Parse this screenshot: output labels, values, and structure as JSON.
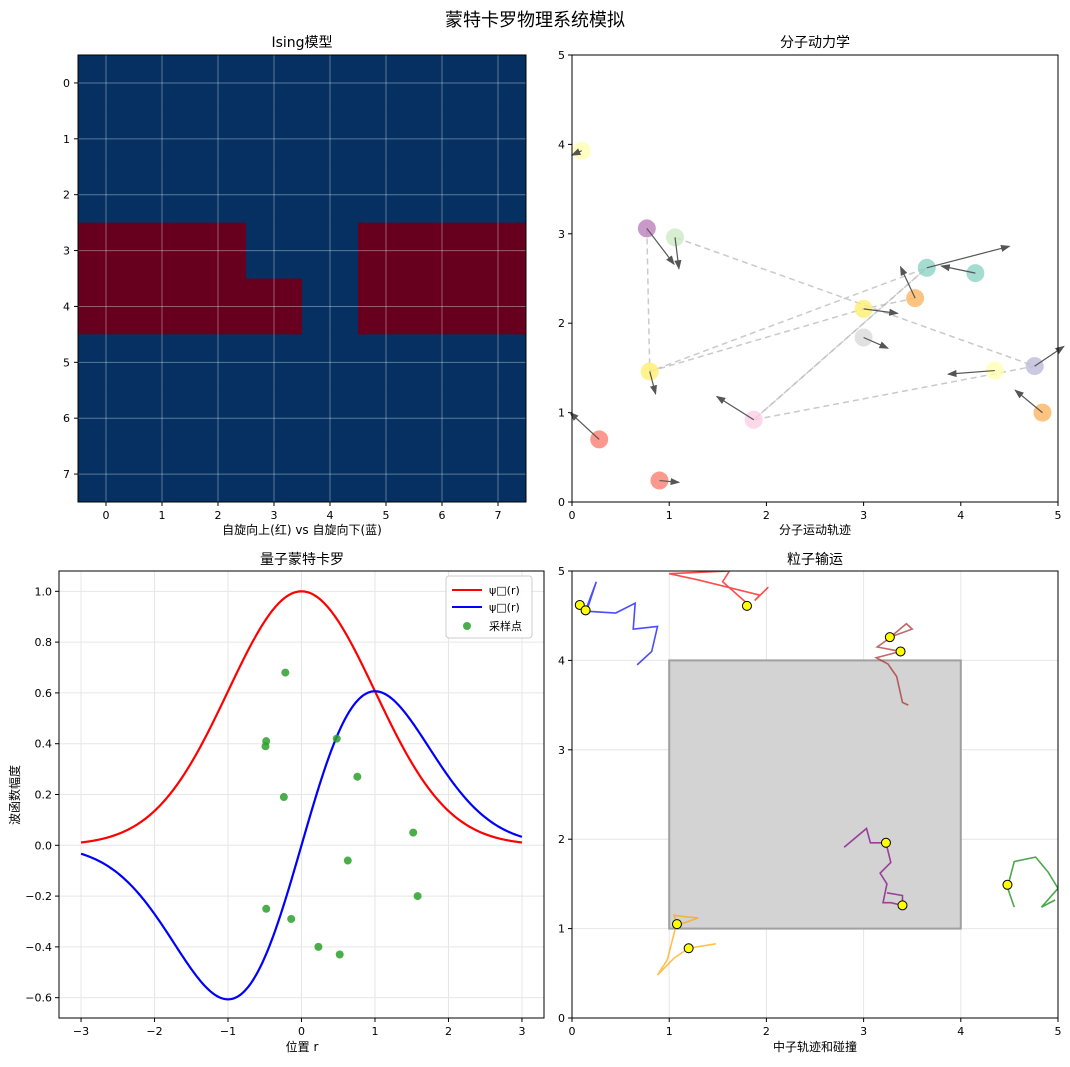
{
  "figure": {
    "suptitle": "蒙特卡罗物理系统模拟"
  },
  "chart_data": [
    {
      "id": "ising",
      "type": "heatmap",
      "title": "Ising模型",
      "xlabel": "自旋向上(红) vs 自旋向下(蓝)",
      "ylabel": "",
      "x_ticks": [
        "0",
        "1",
        "2",
        "3",
        "4",
        "5",
        "6",
        "7"
      ],
      "y_ticks": [
        "0",
        "1",
        "2",
        "3",
        "4",
        "5",
        "6",
        "7"
      ],
      "colors": {
        "up": "#67001f",
        "down": "#053061"
      },
      "grid": true,
      "values": [
        [
          -1,
          -1,
          -1,
          -1,
          -1,
          -1,
          -1,
          -1
        ],
        [
          -1,
          -1,
          -1,
          -1,
          -1,
          -1,
          -1,
          -1
        ],
        [
          -1,
          -1,
          -1,
          -1,
          -1,
          -1,
          -1,
          -1
        ],
        [
          1,
          1,
          1,
          -1,
          -1,
          1,
          1,
          1
        ],
        [
          1,
          1,
          1,
          1,
          -1,
          1,
          1,
          1
        ],
        [
          -1,
          -1,
          -1,
          -1,
          -1,
          -1,
          -1,
          -1
        ],
        [
          -1,
          -1,
          -1,
          -1,
          -1,
          -1,
          -1,
          -1
        ],
        [
          -1,
          -1,
          -1,
          -1,
          -1,
          -1,
          -1,
          -1
        ]
      ]
    },
    {
      "id": "md",
      "type": "scatter",
      "title": "分子动力学",
      "xlabel": "分子运动轨迹",
      "ylabel": "",
      "xlim": [
        0,
        5
      ],
      "ylim": [
        0,
        5
      ],
      "x_ticks": [
        "0",
        "1",
        "2",
        "3",
        "4",
        "5"
      ],
      "y_ticks": [
        "0",
        "1",
        "2",
        "3",
        "4",
        "5"
      ],
      "grid": false,
      "particles": [
        {
          "x": 0.1,
          "y": 3.93,
          "dx": -0.1,
          "dy": -0.05,
          "color": "#ffffb3"
        },
        {
          "x": 0.77,
          "y": 3.06,
          "dx": 0.28,
          "dy": -0.4,
          "color": "#bc80bd"
        },
        {
          "x": 1.06,
          "y": 2.96,
          "dx": 0.04,
          "dy": -0.35,
          "color": "#ccebc5"
        },
        {
          "x": 0.8,
          "y": 1.46,
          "dx": 0.06,
          "dy": -0.25,
          "color": "#ffed6f"
        },
        {
          "x": 0.28,
          "y": 0.7,
          "dx": -0.3,
          "dy": 0.3,
          "color": "#fb8072"
        },
        {
          "x": 0.9,
          "y": 0.24,
          "dx": 0.2,
          "dy": -0.02,
          "color": "#fb8072"
        },
        {
          "x": 1.87,
          "y": 0.92,
          "dx": -0.38,
          "dy": 0.26,
          "color": "#fccde5"
        },
        {
          "x": 3.0,
          "y": 2.16,
          "dx": 0.35,
          "dy": -0.05,
          "color": "#ffed6f"
        },
        {
          "x": 3.0,
          "y": 1.84,
          "dx": 0.25,
          "dy": -0.12,
          "color": "#d9d9d9"
        },
        {
          "x": 3.53,
          "y": 2.28,
          "dx": -0.15,
          "dy": 0.35,
          "color": "#fdb462"
        },
        {
          "x": 3.65,
          "y": 2.62,
          "dx": 0.85,
          "dy": 0.24,
          "color": "#8dd3c7"
        },
        {
          "x": 4.15,
          "y": 2.56,
          "dx": -0.35,
          "dy": 0.08,
          "color": "#8dd3c7"
        },
        {
          "x": 4.35,
          "y": 1.47,
          "dx": -0.48,
          "dy": -0.04,
          "color": "#ffffb3"
        },
        {
          "x": 4.76,
          "y": 1.52,
          "dx": 0.3,
          "dy": 0.22,
          "color": "#bebada"
        },
        {
          "x": 4.84,
          "y": 1.0,
          "dx": -0.28,
          "dy": 0.25,
          "color": "#fdb462"
        }
      ],
      "trajectory": [
        [
          0.77,
          3.06
        ],
        [
          0.8,
          1.46
        ],
        [
          3.65,
          2.62
        ],
        [
          1.87,
          0.92
        ],
        [
          4.76,
          1.52
        ],
        [
          1.06,
          2.96
        ]
      ],
      "trajectory2": [
        [
          0.8,
          1.46
        ],
        [
          3.0,
          2.16
        ],
        [
          3.53,
          2.28
        ]
      ],
      "trajectory3": [
        [
          1.87,
          0.92
        ],
        [
          3.65,
          2.62
        ]
      ]
    },
    {
      "id": "quantum",
      "type": "line",
      "title": "量子蒙特卡罗",
      "xlabel": "位置 r",
      "ylabel": "波函数幅度",
      "xlim": [
        -3.3,
        3.3
      ],
      "ylim": [
        -0.68,
        1.08
      ],
      "x_ticks": [
        "−3",
        "−2",
        "−1",
        "0",
        "1",
        "2",
        "3"
      ],
      "y_ticks": [
        "−0.6",
        "−0.4",
        "−0.2",
        "0.0",
        "0.2",
        "0.4",
        "0.6",
        "0.8",
        "1.0"
      ],
      "grid": true,
      "legend_position": "top-right",
      "series": [
        {
          "name": "ψ□(r)",
          "color": "#ff0000",
          "func": "exp(-x^2/2)"
        },
        {
          "name": "ψ□(r)",
          "color": "#0000ff",
          "func": "x*exp(-x^2/2)"
        }
      ],
      "samples_label": "采样点",
      "samples_color": "#2ca02c",
      "samples": [
        [
          -0.22,
          0.68
        ],
        [
          -0.48,
          0.41
        ],
        [
          -0.49,
          0.39
        ],
        [
          0.48,
          0.42
        ],
        [
          -0.24,
          0.19
        ],
        [
          0.76,
          0.27
        ],
        [
          1.52,
          0.05
        ],
        [
          0.63,
          -0.06
        ],
        [
          1.58,
          -0.2
        ],
        [
          -0.48,
          -0.25
        ],
        [
          -0.14,
          -0.29
        ],
        [
          0.23,
          -0.4
        ],
        [
          0.52,
          -0.43
        ]
      ]
    },
    {
      "id": "transport",
      "type": "line",
      "title": "粒子输运",
      "xlabel": "中子轨迹和碰撞",
      "ylabel": "",
      "xlim": [
        0,
        5
      ],
      "ylim": [
        0,
        5
      ],
      "x_ticks": [
        "0",
        "1",
        "2",
        "3",
        "4",
        "5"
      ],
      "y_ticks": [
        "0",
        "1",
        "2",
        "3",
        "4",
        "5"
      ],
      "grid": true,
      "box": {
        "x0": 1,
        "y0": 1,
        "x1": 4,
        "y1": 4,
        "fill": "#d3d3d3",
        "edge": "#a0a0a0"
      },
      "collision_color": "#ffff00",
      "tracks": [
        {
          "color": "#0000ff",
          "pts": [
            [
              0.08,
              4.62
            ],
            [
              0.14,
              4.56
            ],
            [
              0.25,
              4.88
            ],
            [
              0.15,
              4.55
            ],
            [
              0.45,
              4.53
            ],
            [
              0.65,
              4.64
            ],
            [
              0.63,
              4.35
            ],
            [
              0.88,
              4.38
            ],
            [
              0.82,
              4.1
            ],
            [
              0.67,
              3.95
            ]
          ],
          "hits": [
            [
              0.08,
              4.62
            ],
            [
              0.14,
              4.56
            ]
          ]
        },
        {
          "color": "#ff0000",
          "pts": [
            [
              1.83,
              4.61
            ],
            [
              1.55,
              4.88
            ],
            [
              1.62,
              5.0
            ],
            [
              1.0,
              4.97
            ],
            [
              1.3,
              4.9
            ],
            [
              1.93,
              4.73
            ],
            [
              1.88,
              4.67
            ],
            [
              2.02,
              4.82
            ]
          ],
          "hits": [
            [
              1.8,
              4.61
            ]
          ]
        },
        {
          "color": "#a52a2a",
          "pts": [
            [
              3.27,
              4.26
            ],
            [
              3.5,
              4.35
            ],
            [
              3.44,
              4.41
            ],
            [
              3.23,
              4.22
            ],
            [
              3.14,
              4.15
            ],
            [
              3.38,
              4.1
            ],
            [
              3.13,
              4.03
            ],
            [
              3.25,
              3.96
            ],
            [
              3.34,
              3.82
            ],
            [
              3.4,
              3.53
            ],
            [
              3.46,
              3.5
            ]
          ],
          "hits": [
            [
              3.27,
              4.26
            ],
            [
              3.38,
              4.1
            ]
          ]
        },
        {
          "color": "#800080",
          "pts": [
            [
              2.8,
              1.91
            ],
            [
              3.03,
              2.12
            ],
            [
              3.07,
              1.96
            ],
            [
              3.23,
              1.96
            ],
            [
              3.28,
              1.74
            ],
            [
              3.17,
              1.62
            ],
            [
              3.24,
              1.5
            ],
            [
              3.2,
              1.29
            ],
            [
              3.28,
              1.29
            ],
            [
              3.4,
              1.26
            ],
            [
              3.4,
              1.37
            ],
            [
              3.24,
              1.4
            ]
          ],
          "hits": [
            [
              3.23,
              1.96
            ],
            [
              3.4,
              1.26
            ]
          ]
        },
        {
          "color": "#008000",
          "pts": [
            [
              4.52,
              1.47
            ],
            [
              4.48,
              1.46
            ],
            [
              4.55,
              1.75
            ],
            [
              4.77,
              1.8
            ],
            [
              4.9,
              1.63
            ],
            [
              5.0,
              1.45
            ],
            [
              4.83,
              1.24
            ],
            [
              4.97,
              1.32
            ]
          ],
          "extra": [
            [
              4.48,
              1.46
            ],
            [
              4.55,
              1.24
            ]
          ],
          "hits": [
            [
              4.48,
              1.49
            ]
          ]
        },
        {
          "color": "#ffa500",
          "pts": [
            [
              1.08,
              1.05
            ],
            [
              1.05,
              1.15
            ],
            [
              1.18,
              1.13
            ],
            [
              1.3,
              1.12
            ],
            [
              1.07,
              1.03
            ],
            [
              0.98,
              0.65
            ],
            [
              0.88,
              0.48
            ],
            [
              1.05,
              0.67
            ],
            [
              1.2,
              0.78
            ],
            [
              1.48,
              0.83
            ]
          ],
          "hits": [
            [
              1.08,
              1.05
            ],
            [
              1.2,
              0.78
            ]
          ]
        }
      ]
    }
  ]
}
